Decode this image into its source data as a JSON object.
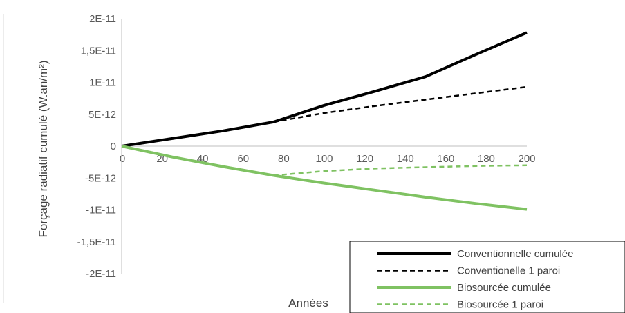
{
  "chart_data": {
    "type": "line",
    "title": "",
    "xlabel": "Années",
    "ylabel": "Forçage radiatif cumulé (W.an/m²)",
    "xlim": [
      0,
      200
    ],
    "ylim": [
      -2e-11,
      2e-11
    ],
    "x_ticks": [
      20,
      40,
      60,
      80,
      100,
      120,
      140,
      160,
      180,
      200
    ],
    "x_tick_labels": [
      "20",
      "40",
      "60",
      "80",
      "100",
      "120",
      "140",
      "160",
      "180",
      "200"
    ],
    "x_zero_label": "0",
    "y_ticks": [
      2e-11,
      1.5e-11,
      1e-11,
      5e-12,
      0,
      -5e-12,
      -1e-11,
      -1.5e-11,
      -2e-11
    ],
    "y_tick_labels": [
      "2E-11",
      "1,5E-11",
      "1E-11",
      "5E-12",
      "0",
      "-5E-12",
      "-1E-11",
      "-1,5E-11",
      "-2E-11"
    ],
    "grid": false,
    "legend_position": "bottom-right",
    "series": [
      {
        "name": "Conventionnelle cumulée",
        "color": "#000000",
        "style": "solid",
        "x": [
          0,
          25,
          50,
          75,
          100,
          125,
          150,
          175,
          200
        ],
        "y": [
          0,
          1.2e-12,
          2.4e-12,
          3.8e-12,
          6.4e-12,
          8.6e-12,
          1.09e-11,
          1.44e-11,
          1.78e-11
        ]
      },
      {
        "name": "Conventionelle 1 paroi",
        "color": "#000000",
        "style": "dashed",
        "x": [
          75,
          100,
          125,
          150,
          175,
          200
        ],
        "y": [
          3.8e-12,
          5.2e-12,
          6.3e-12,
          7.3e-12,
          8.3e-12,
          9.3e-12
        ]
      },
      {
        "name": "Biosourcée cumulée",
        "color": "#7fc262",
        "style": "solid",
        "x": [
          0,
          25,
          50,
          75,
          100,
          125,
          150,
          175,
          200
        ],
        "y": [
          0,
          -1.7e-12,
          -3.2e-12,
          -4.6e-12,
          -5.8e-12,
          -6.9e-12,
          -8e-12,
          -9e-12,
          -9.9e-12
        ]
      },
      {
        "name": "Biosourcée 1 paroi",
        "color": "#7fc262",
        "style": "dashed",
        "x": [
          75,
          100,
          125,
          150,
          175,
          200
        ],
        "y": [
          -4.6e-12,
          -3.9e-12,
          -3.5e-12,
          -3.3e-12,
          -3.1e-12,
          -3e-12
        ]
      }
    ]
  }
}
